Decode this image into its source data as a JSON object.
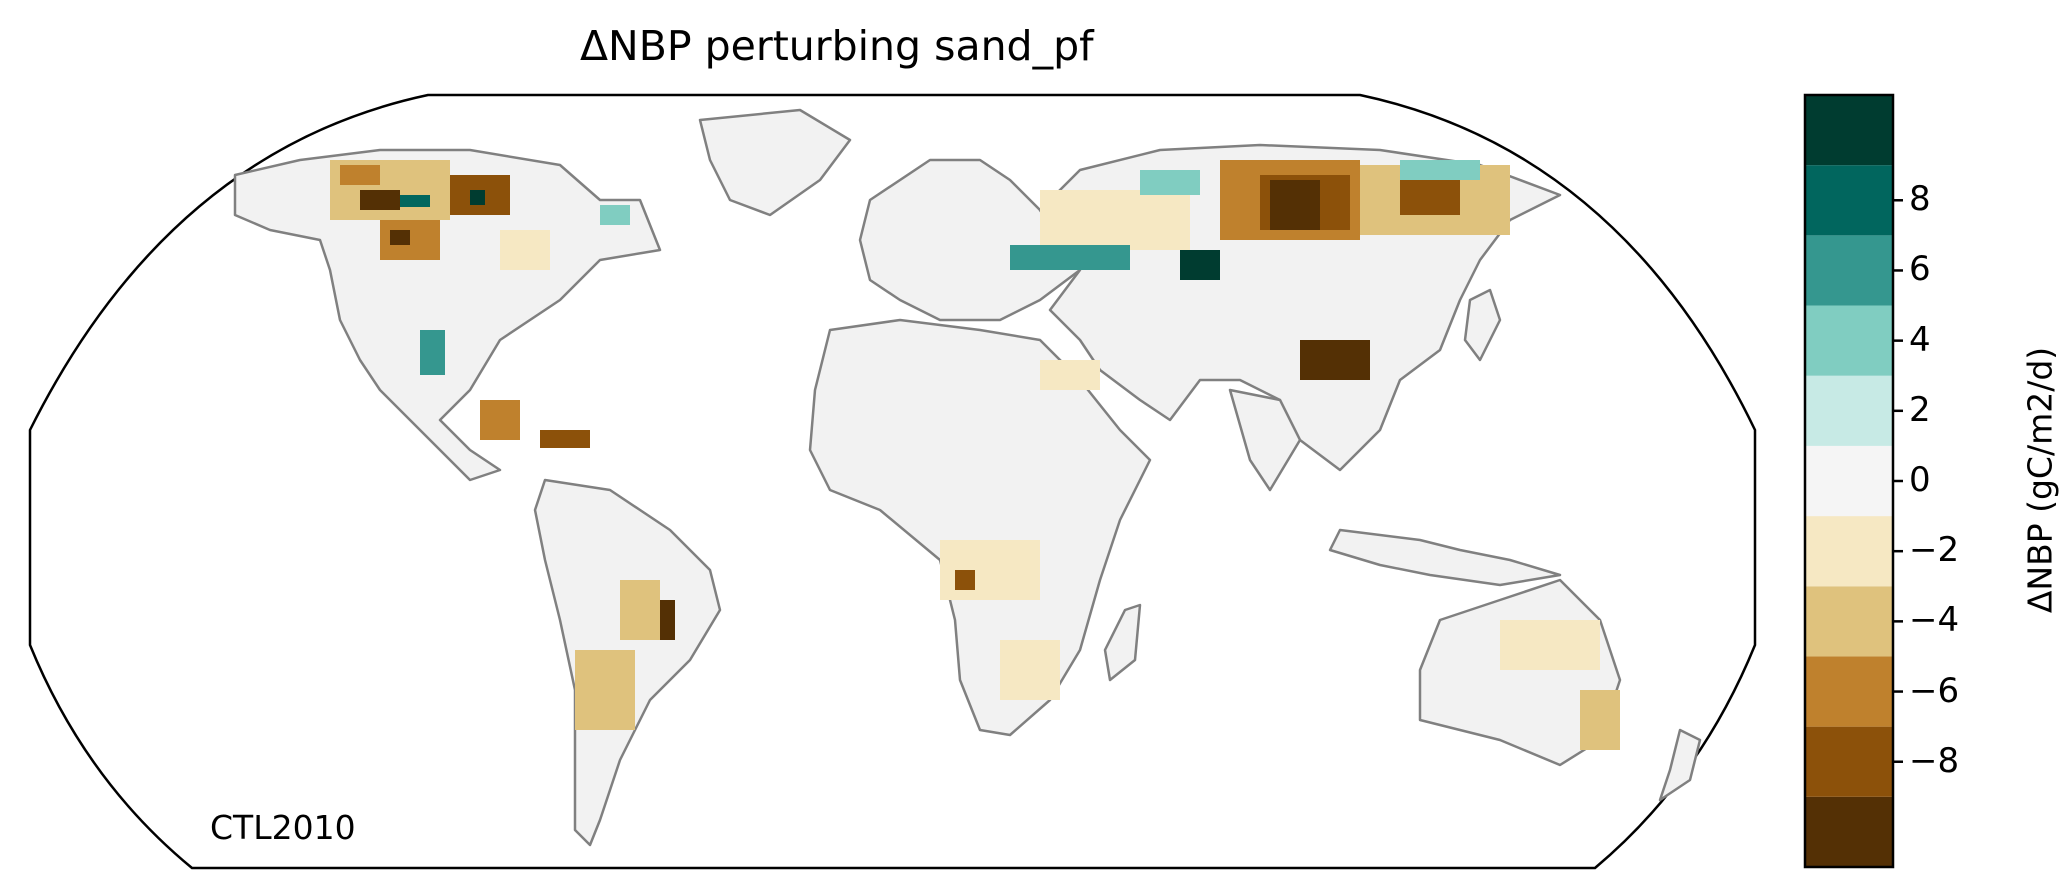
{
  "title": "ΔNBP perturbing sand_pf",
  "corner_label": "CTL2010",
  "colorbar": {
    "label": "ΔNBP (gC/m2/d)",
    "ticks": [
      "8",
      "6",
      "4",
      "2",
      "0",
      "−2",
      "−4",
      "−6",
      "−8"
    ],
    "bins": [
      {
        "from": -10,
        "to": -8,
        "color": "#543005"
      },
      {
        "from": -8,
        "to": -6,
        "color": "#8c510a"
      },
      {
        "from": -6,
        "to": -4,
        "color": "#bf812d"
      },
      {
        "from": -4,
        "to": -2,
        "color": "#dfc27d"
      },
      {
        "from": -2,
        "to": 0,
        "color": "#f6e8c3"
      },
      {
        "from": 0,
        "to": 2,
        "color": "#f5f5f5"
      },
      {
        "from": 2,
        "to": 4,
        "color": "#c7eae5"
      },
      {
        "from": 4,
        "to": 6,
        "color": "#80cdc1"
      },
      {
        "from": 6,
        "to": 8,
        "color": "#35978f"
      },
      {
        "from": 8,
        "to": 10,
        "color": "#01665e"
      },
      {
        "from": 10,
        "to": 12,
        "color": "#003c30"
      }
    ]
  },
  "map": {
    "projection": "Robinson",
    "coastline_color": "#808080",
    "border_color": "#c8c8c8",
    "land_fill": "#f2f2f2"
  }
}
